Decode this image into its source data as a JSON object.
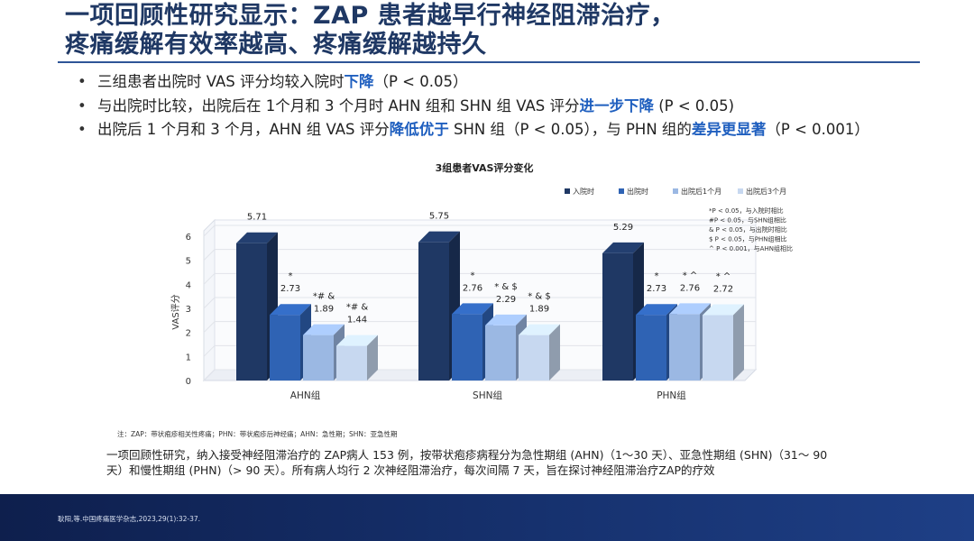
{
  "title": {
    "line1": "一项回顾性研究显示：ZAP 患者越早行神经阻滞治疗，",
    "line2": "疼痛缓解有效率越高、疼痛缓解越持久"
  },
  "bullets": [
    {
      "pre": "三组患者出院时 VAS 评分均较入院时",
      "hl": "下降",
      "post": "（P < 0.05）"
    },
    {
      "pre": "与出院时比较，出院后在 1个月和 3 个月时 AHN 组和 SHN 组 VAS 评分",
      "hl": "进一步下降",
      "post": " (P < 0.05)"
    },
    {
      "pre": "出院后 1 个月和 3 个月，AHN 组 VAS 评分",
      "hl": "降低优于",
      "mid": " SHN 组（P < 0.05），与 PHN 组的",
      "hl2": "差异更显著",
      "post": "（P < 0.001）"
    }
  ],
  "chart_data": {
    "type": "bar",
    "title": "3组患者VAS评分变化",
    "ylabel": "VAS评分",
    "ylim": [
      0,
      6
    ],
    "yticks": [
      "0",
      "1",
      "2",
      "3",
      "4",
      "5",
      "6"
    ],
    "categories": [
      "AHN组",
      "SHN组",
      "PHN组"
    ],
    "series": [
      {
        "name": "入院时",
        "color": "#1f3864",
        "values": [
          5.71,
          5.75,
          5.29
        ]
      },
      {
        "name": "出院时",
        "color": "#2f63b4",
        "values": [
          2.73,
          2.76,
          2.73
        ]
      },
      {
        "name": "出院后1个月",
        "color": "#9bb8e3",
        "values": [
          1.89,
          2.29,
          2.76
        ]
      },
      {
        "name": "出院后3个月",
        "color": "#c7d8f0",
        "values": [
          1.44,
          1.89,
          2.72
        ]
      }
    ],
    "markers": [
      [
        "",
        "*",
        "*# &",
        "*# &"
      ],
      [
        "",
        "*",
        "* & $",
        "* & $"
      ],
      [
        "",
        "*",
        "* ^",
        "* ^"
      ]
    ],
    "notes": [
      "*P < 0.05，与入院时相比",
      "#P < 0.05，与SHN组相比",
      "& P < 0.05，与出院时相比",
      "$ P < 0.05，与PHN组相比",
      "^ P < 0.001，与AHN组相比"
    ]
  },
  "footnote": "注：ZAP：带状疱疹相关性疼痛；PHN：带状疱疹后神经痛；AHN：急性期；SHN：亚急性期",
  "study": "一项回顾性研究，纳入接受神经阻滞治疗的 ZAP病人 153 例，按带状疱疹病程分为急性期组 (AHN)（1～30 天）、亚急性期组 (SHN)（31～ 90 天）和慢性期组 (PHN)（> 90 天）。所有病人均行 2 次神经阻滞治疗，每次间隔 7 天，旨在探讨神经阻滞治疗ZAP的疗效",
  "reference": "耿阳,等.中国疼痛医学杂志,2023,29(1):32-37."
}
